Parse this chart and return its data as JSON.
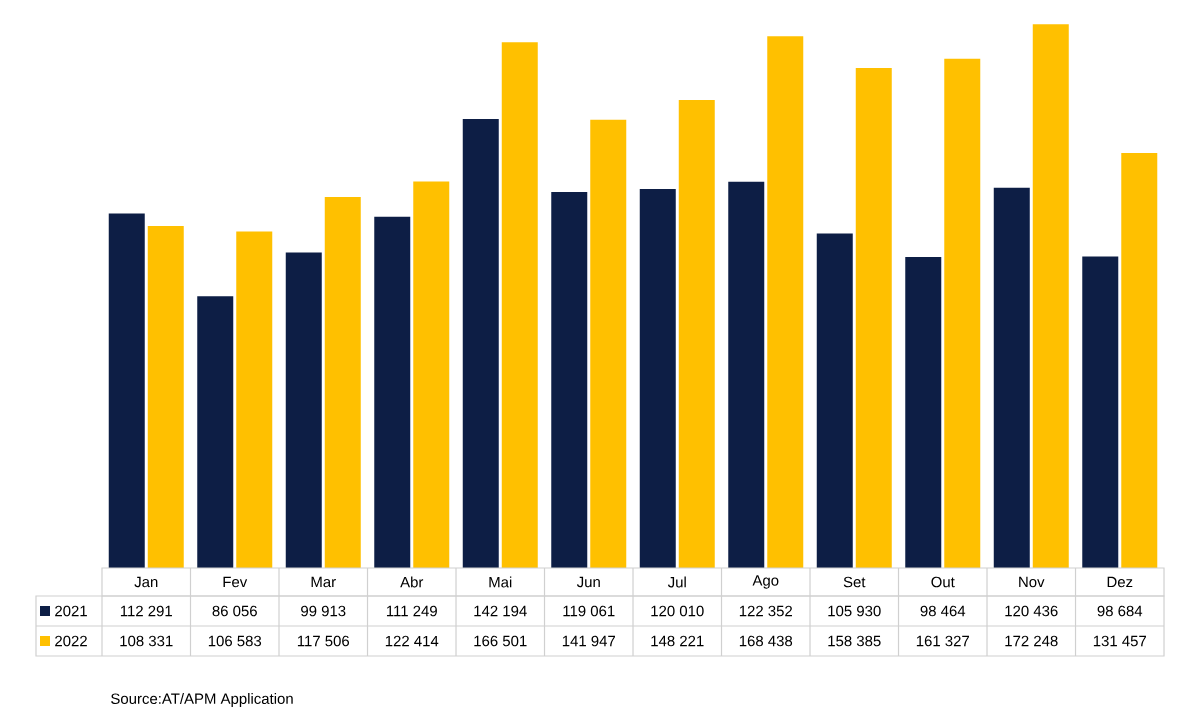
{
  "chart_data": {
    "type": "bar",
    "categories": [
      "Jan",
      "Fev",
      "Mar",
      "Abr",
      "Mai",
      "Jun",
      "Jul",
      "Ago",
      "Set",
      "Out",
      "Nov",
      "Dez"
    ],
    "series": [
      {
        "name": "2021",
        "color": "#0d1e45",
        "values": [
          112291,
          86056,
          99913,
          111249,
          142194,
          119061,
          120010,
          122352,
          105930,
          98464,
          120436,
          98684
        ],
        "value_labels": [
          "112 291",
          "86 056",
          "99 913",
          "111 249",
          "142 194",
          "119 061",
          "120 010",
          "122 352",
          "105 930",
          "98 464",
          "120 436",
          "98 684"
        ]
      },
      {
        "name": "2022",
        "color": "#ffc000",
        "values": [
          108331,
          106583,
          117506,
          122414,
          166501,
          141947,
          148221,
          168438,
          158385,
          161327,
          172248,
          131457
        ],
        "value_labels": [
          "108 331",
          "106 583",
          "117 506",
          "122 414",
          "166 501",
          "141 947",
          "148 221",
          "168 438",
          "158 385",
          "161 327",
          "172 248",
          "131 457"
        ]
      }
    ],
    "legend": "bottom",
    "annotations": [
      "Source:AT/APM Application"
    ]
  }
}
